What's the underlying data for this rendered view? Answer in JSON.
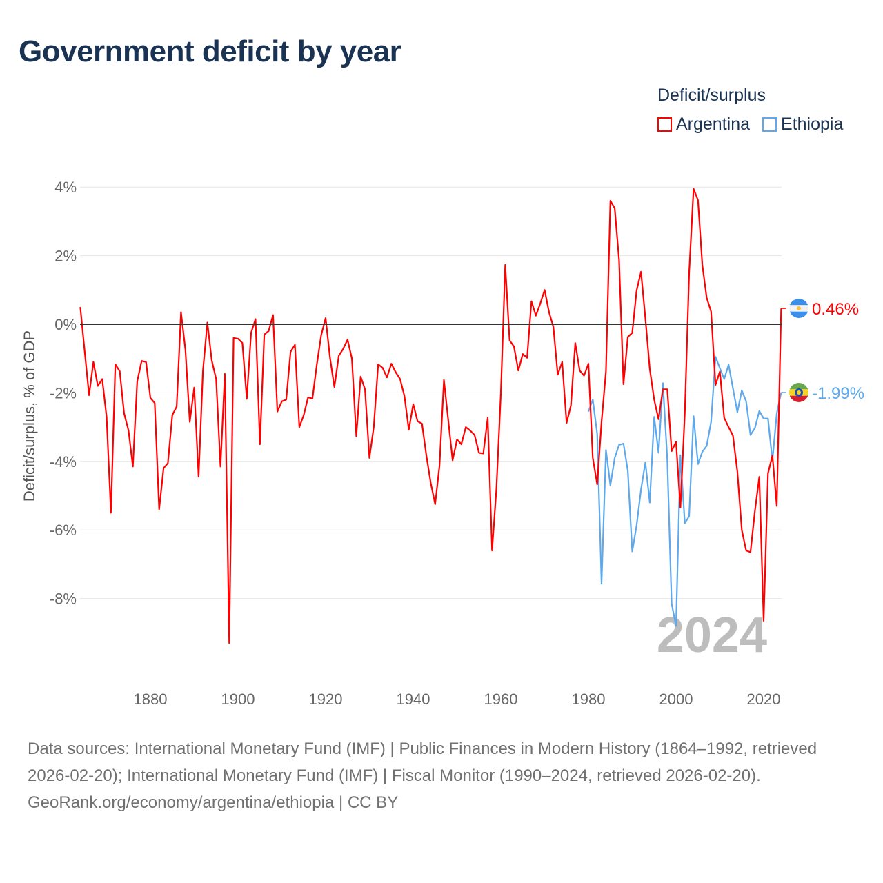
{
  "title": "Government deficit by year",
  "legend": {
    "title": "Deficit/surplus",
    "items": [
      {
        "name": "Argentina",
        "color": "#ff0000"
      },
      {
        "name": "Ethiopia",
        "color": "#5ea8ec"
      }
    ]
  },
  "year_watermark": "2024",
  "footer": {
    "sources": "Data sources: International Monetary Fund (IMF) | Public Finances in Modern History (1864–1992, retrieved 2026-02-20); International Monetary Fund (IMF) | Fiscal Monitor (1990–2024, retrieved 2026-02-20).",
    "credit": "GeoRank.org/economy/argentina/ethiopia | CC BY"
  },
  "chart_data": {
    "type": "line",
    "title": "Government deficit by year",
    "xlabel": "",
    "ylabel": "Deficit/surplus, % of GDP",
    "xlim": [
      1864,
      2024
    ],
    "ylim": [
      -10,
      4.5
    ],
    "x_ticks": [
      1880,
      1900,
      1920,
      1940,
      1960,
      1980,
      2000,
      2020
    ],
    "y_ticks": [
      4,
      2,
      0,
      -2,
      -4,
      -6,
      -8
    ],
    "y_tick_labels": [
      "4%",
      "2%",
      "0%",
      "-2%",
      "-4%",
      "-6%",
      "-8%"
    ],
    "grid": true,
    "legend_position": "top-right",
    "series": [
      {
        "name": "Argentina",
        "color": "#ff0000",
        "start_year": 1864,
        "end_label": "0.46%",
        "values": [
          0.5,
          -0.8,
          -2.07,
          -1.1,
          -1.8,
          -1.6,
          -2.7,
          -5.5,
          -1.17,
          -1.37,
          -2.6,
          -3.1,
          -4.15,
          -1.67,
          -1.07,
          -1.1,
          -2.15,
          -2.3,
          -5.4,
          -4.2,
          -4.05,
          -2.65,
          -2.4,
          0.35,
          -0.75,
          -2.85,
          -1.85,
          -4.45,
          -1.35,
          0.05,
          -1.05,
          -1.6,
          -4.15,
          -1.45,
          -9.3,
          -0.4,
          -0.42,
          -0.55,
          -2.18,
          -0.25,
          0.15,
          -3.5,
          -0.3,
          -0.2,
          0.27,
          -2.55,
          -2.25,
          -2.2,
          -0.8,
          -0.6,
          -3.0,
          -2.65,
          -2.13,
          -2.17,
          -1.17,
          -0.32,
          0.18,
          -0.97,
          -1.83,
          -0.92,
          -0.72,
          -0.45,
          -1.0,
          -3.27,
          -1.53,
          -1.9,
          -3.9,
          -3.0,
          -1.17,
          -1.27,
          -1.55,
          -1.15,
          -1.4,
          -1.6,
          -2.1,
          -3.08,
          -2.33,
          -2.83,
          -2.9,
          -3.82,
          -4.63,
          -5.25,
          -4.13,
          -1.63,
          -2.8,
          -3.97,
          -3.36,
          -3.5,
          -3.0,
          -3.1,
          -3.23,
          -3.75,
          -3.77,
          -2.73,
          -6.6,
          -4.8,
          -2.03,
          1.73,
          -0.47,
          -0.65,
          -1.35,
          -0.87,
          -0.98,
          0.67,
          0.25,
          0.6,
          1.0,
          0.35,
          -0.08,
          -1.47,
          -1.1,
          -2.88,
          -2.37,
          -0.55,
          -1.35,
          -1.5,
          -1.15,
          -3.9,
          -4.67,
          -2.85,
          -1.37,
          3.6,
          3.38,
          1.88,
          -1.75,
          -0.37,
          -0.25,
          0.98,
          1.53,
          0.18,
          -1.3,
          -2.2,
          -2.77,
          -1.9,
          -1.9,
          -3.7,
          -3.43,
          -5.35,
          -2.6,
          1.5,
          3.95,
          3.62,
          1.73,
          0.77,
          0.37,
          -1.77,
          -1.38,
          -2.73,
          -3.0,
          -3.25,
          -4.3,
          -6.0,
          -6.6,
          -6.65,
          -5.45,
          -4.45,
          -8.65,
          -4.35,
          -3.83,
          -5.3,
          0.46
        ]
      },
      {
        "name": "Ethiopia",
        "color": "#5ea8ec",
        "start_year": 1980,
        "end_label": "-1.99%",
        "values": [
          -2.55,
          -2.2,
          -3.2,
          -7.57,
          -3.67,
          -4.7,
          -3.9,
          -3.52,
          -3.48,
          -4.28,
          -6.63,
          -5.87,
          -4.82,
          -4.03,
          -5.2,
          -2.7,
          -3.75,
          -1.72,
          -3.93,
          -8.15,
          -8.8,
          -3.82,
          -5.8,
          -5.6,
          -2.68,
          -4.08,
          -3.72,
          -3.55,
          -2.85,
          -0.95,
          -1.28,
          -1.6,
          -1.18,
          -1.87,
          -2.57,
          -1.93,
          -2.25,
          -3.23,
          -3.03,
          -2.53,
          -2.75,
          -2.75,
          -3.98,
          -2.6,
          -1.99
        ]
      }
    ]
  }
}
